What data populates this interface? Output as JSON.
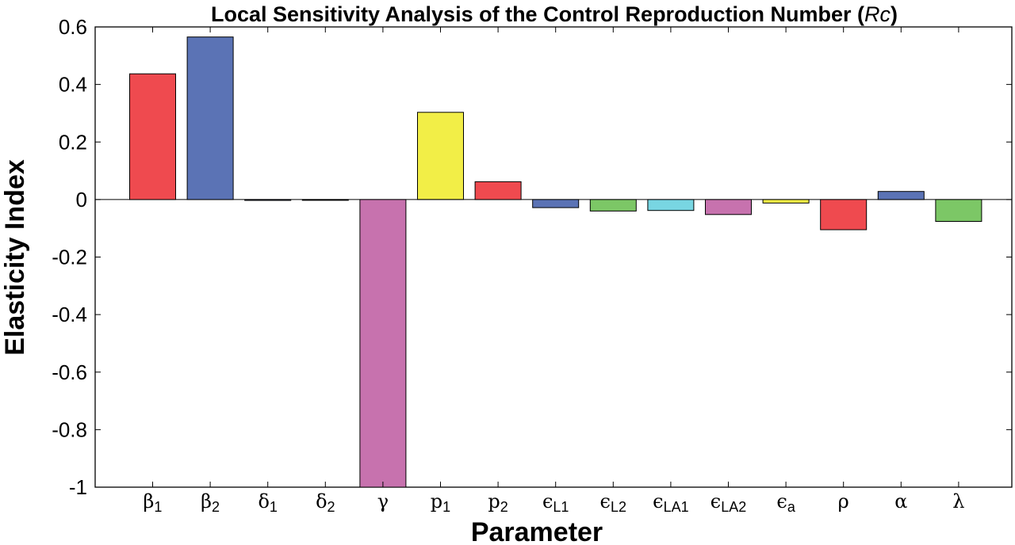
{
  "chart_data": {
    "type": "bar",
    "title": "Local Sensitivity Analysis of the Control Reproduction Number (",
    "title_symbol": "Rc",
    "title_close": ")",
    "xlabel": "Parameter",
    "ylabel": "Elasticity Index",
    "ylim": [
      -1,
      0.6
    ],
    "yticks": [
      "0.6",
      "0.4",
      "0.2",
      "0",
      "-0.2",
      "-0.4",
      "-0.6",
      "-0.8",
      "-1"
    ],
    "grid": false,
    "categories": [
      {
        "base": "β",
        "sub": "1"
      },
      {
        "base": "β",
        "sub": "2"
      },
      {
        "base": "δ",
        "sub": "1"
      },
      {
        "base": "δ",
        "sub": "2"
      },
      {
        "base": "γ",
        "sub": ""
      },
      {
        "base": "p",
        "sub": "1"
      },
      {
        "base": "p",
        "sub": "2"
      },
      {
        "base": "ϵ",
        "sub": "L1"
      },
      {
        "base": "ϵ",
        "sub": "L2"
      },
      {
        "base": "ϵ",
        "sub": "LA1"
      },
      {
        "base": "ϵ",
        "sub": "LA2"
      },
      {
        "base": "ϵ",
        "sub": "a"
      },
      {
        "base": "ρ",
        "sub": ""
      },
      {
        "base": "α",
        "sub": ""
      },
      {
        "base": "λ",
        "sub": ""
      }
    ],
    "values": [
      0.437,
      0.565,
      -0.003,
      -0.002,
      -1.0,
      0.303,
      0.062,
      -0.028,
      -0.04,
      -0.038,
      -0.052,
      -0.012,
      -0.105,
      0.028,
      -0.076
    ],
    "bar_colors": [
      "#ef4a4f",
      "#5b73b5",
      "#5b73b5",
      "#5b73b5",
      "#c772ae",
      "#f2ee47",
      "#ef4a4f",
      "#5b73b5",
      "#7cc766",
      "#78d6e2",
      "#c772ae",
      "#f2ee47",
      "#ef4a4f",
      "#5b73b5",
      "#7cc766"
    ]
  }
}
